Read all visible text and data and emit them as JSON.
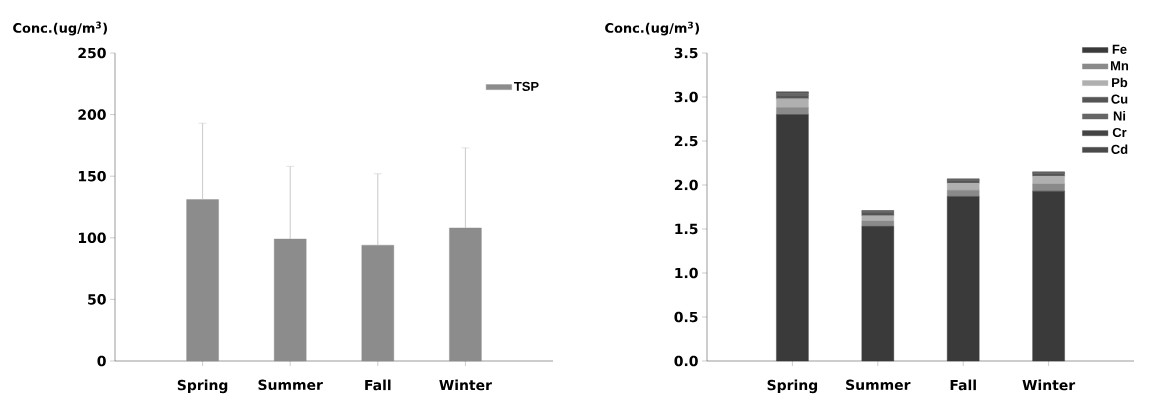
{
  "chart_data": [
    {
      "type": "bar",
      "ylabel": "Conc.(ug/m$^{3}$)",
      "categories": [
        "Spring",
        "Summer",
        "Fall",
        "Winter"
      ],
      "series": [
        {
          "name": "TSP",
          "color": "#8c8c8c",
          "values": [
            131,
            99,
            94,
            108
          ],
          "errors": [
            [
              131,
              193
            ],
            [
              99,
              158
            ],
            [
              94,
              152
            ],
            [
              108,
              173
            ]
          ]
        }
      ],
      "ylim": [
        0,
        250
      ],
      "yticks": [
        0,
        50,
        100,
        150,
        200,
        250
      ],
      "legend": "top right"
    },
    {
      "type": "bar",
      "stacked": true,
      "ylabel": "Conc.(ug/m$^{3}$)",
      "categories": [
        "Spring",
        "Summer",
        "Fall",
        "Winter"
      ],
      "series": [
        {
          "name": "Fe",
          "color": "#3a3a3a",
          "values": [
            2.8,
            1.53,
            1.87,
            1.93
          ]
        },
        {
          "name": "Mn",
          "color": "#8a8a8a",
          "values": [
            0.08,
            0.06,
            0.07,
            0.08
          ]
        },
        {
          "name": "Pb",
          "color": "#b0b0b0",
          "values": [
            0.1,
            0.06,
            0.08,
            0.09
          ]
        },
        {
          "name": "Cu",
          "color": "#555555",
          "values": [
            0.04,
            0.04,
            0.03,
            0.03
          ]
        },
        {
          "name": "Ni",
          "color": "#666666",
          "values": [
            0.02,
            0.01,
            0.01,
            0.01
          ]
        },
        {
          "name": "Cr",
          "color": "#444444",
          "values": [
            0.01,
            0.01,
            0.01,
            0.01
          ]
        },
        {
          "name": "Cd",
          "color": "#4a4a4a",
          "values": [
            0.01,
            0.0,
            0.0,
            0.0
          ]
        }
      ],
      "ylim": [
        0,
        3.5
      ],
      "yticks": [
        {
          "value": 0,
          "label": "0.0"
        },
        {
          "value": 0.5,
          "label": "0.5"
        },
        {
          "value": 1,
          "label": "1.0"
        },
        {
          "value": 1.5,
          "label": "1.5"
        },
        {
          "value": 2,
          "label": "2.0"
        },
        {
          "value": 2.5,
          "label": "2.5"
        },
        {
          "value": 3,
          "label": "3.0"
        },
        {
          "value": 3.5,
          "label": "3.5"
        }
      ],
      "legend": "right"
    }
  ]
}
